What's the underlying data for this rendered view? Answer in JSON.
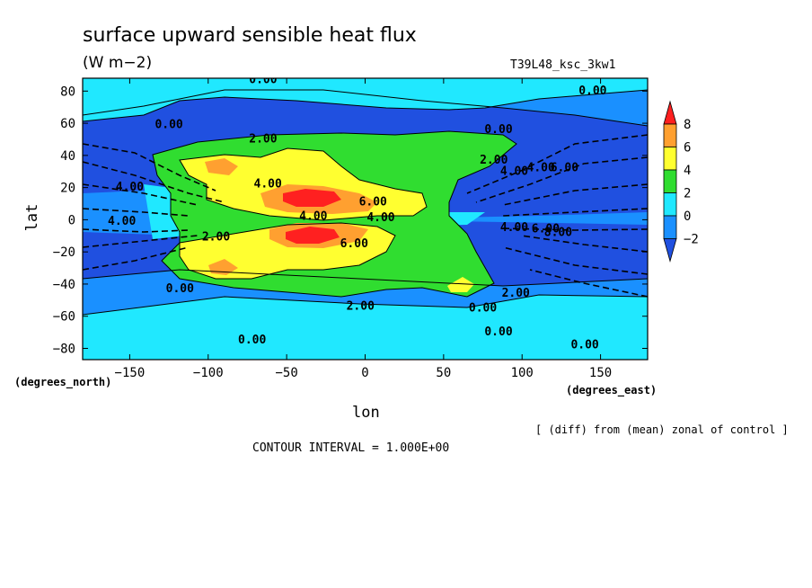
{
  "chart_data": {
    "type": "heatmap",
    "title": "surface upward sensible heat flux",
    "units": "(W m−2)",
    "run_label": "T39L48_ksc_3kw1",
    "xlabel": "lon",
    "ylabel": "lat",
    "x_unit_label": "(degrees_east)",
    "y_unit_label": "(degrees_north)",
    "note": "[ (diff) from (mean) zonal of control ]",
    "contour_interval_text": "CONTOUR INTERVAL = 1.000E+00",
    "xlim": [
      -180,
      180
    ],
    "ylim": [
      -87,
      88
    ],
    "x_ticks": [
      -150,
      -100,
      -50,
      0,
      50,
      100,
      150
    ],
    "x_tick_labels": [
      "−150",
      "−100",
      "−50",
      "0",
      "50",
      "100",
      "150"
    ],
    "y_ticks": [
      80,
      60,
      40,
      20,
      0,
      -20,
      -40,
      -60,
      -80
    ],
    "y_tick_labels": [
      "80",
      "60",
      "40",
      "20",
      "0",
      "−20",
      "−40",
      "−60",
      "−80"
    ],
    "colorbar": {
      "levels": [
        8,
        6,
        4,
        2,
        0,
        -2
      ],
      "labels": [
        "8",
        "6",
        "4",
        "2",
        "0",
        "−2"
      ],
      "colors": [
        "#ff2020",
        "#ffa030",
        "#ffff30",
        "#30dd30",
        "#20e8ff",
        "#1a90ff",
        "#2050e0"
      ]
    },
    "fill_colors": {
      "lt_m2": "#2050e0",
      "m2_0": "#1a90ff",
      "0_2": "#20e8ff",
      "2_4": "#30dd30",
      "4_6": "#ffff30",
      "6_8": "#ffa030",
      "gt_8": "#ff2020"
    },
    "contour_labels": [
      {
        "text": "0.00",
        "lon": -65,
        "lat": 85
      },
      {
        "text": "0.00",
        "lon": 145,
        "lat": 78
      },
      {
        "text": "0.00",
        "lon": -125,
        "lat": 57
      },
      {
        "text": "0.00",
        "lon": 85,
        "lat": 54
      },
      {
        "text": "2.00",
        "lon": -65,
        "lat": 48
      },
      {
        "text": "2.00",
        "lon": 82,
        "lat": 35
      },
      {
        "text": "4.00",
        "lon": 95,
        "lat": 28
      },
      {
        "text": "4.00",
        "lon": 112,
        "lat": 30
      },
      {
        "text": "6.00",
        "lon": 127,
        "lat": 30
      },
      {
        "text": "4.00",
        "lon": -62,
        "lat": 20
      },
      {
        "text": "4.00",
        "lon": -150,
        "lat": 18
      },
      {
        "text": "6.00",
        "lon": 5,
        "lat": 9
      },
      {
        "text": "4.00",
        "lon": -33,
        "lat": 0
      },
      {
        "text": "4.00",
        "lon": 10,
        "lat": -1
      },
      {
        "text": "4.00",
        "lon": -155,
        "lat": -3
      },
      {
        "text": "4.00",
        "lon": 95,
        "lat": -7
      },
      {
        "text": "6.00",
        "lon": 115,
        "lat": -8
      },
      {
        "text": "8.00",
        "lon": 123,
        "lat": -10
      },
      {
        "text": "2.00",
        "lon": -95,
        "lat": -13
      },
      {
        "text": "6.00",
        "lon": -7,
        "lat": -17
      },
      {
        "text": "0.00",
        "lon": -118,
        "lat": -45
      },
      {
        "text": "2.00",
        "lon": -3,
        "lat": -56
      },
      {
        "text": "0.00",
        "lon": 75,
        "lat": -57
      },
      {
        "text": "2.00",
        "lon": 96,
        "lat": -48
      },
      {
        "text": "0.00",
        "lon": -72,
        "lat": -77
      },
      {
        "text": "0.00",
        "lon": 85,
        "lat": -72
      },
      {
        "text": "0.00",
        "lon": 140,
        "lat": -80
      }
    ]
  }
}
